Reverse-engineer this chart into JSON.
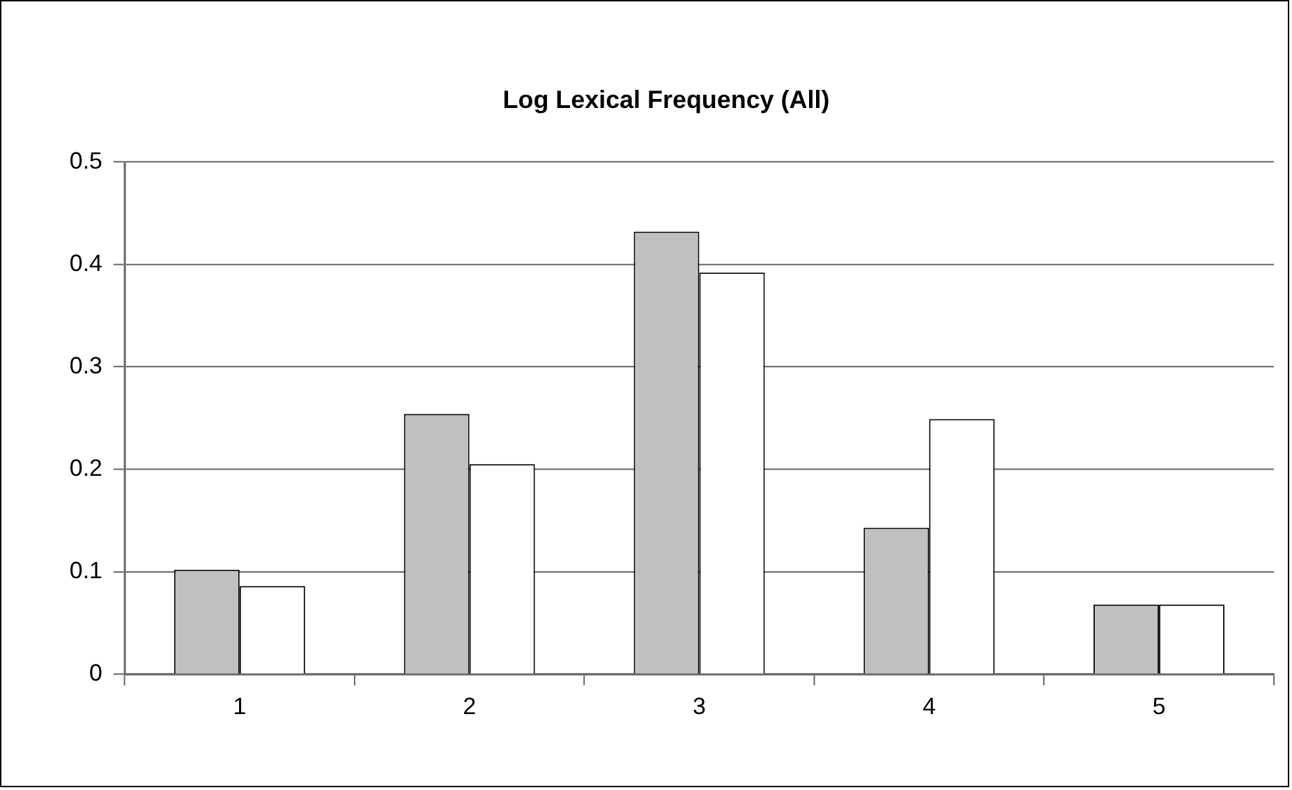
{
  "chart_data": {
    "type": "bar",
    "title": "Log Lexical Frequency (All)",
    "categories": [
      "1",
      "2",
      "3",
      "4",
      "5"
    ],
    "series": [
      {
        "color": "#c0c0c0",
        "values": [
          0.102,
          0.254,
          0.432,
          0.143,
          0.068
        ]
      },
      {
        "color": "#ffffff",
        "values": [
          0.086,
          0.205,
          0.392,
          0.249,
          0.068
        ]
      }
    ],
    "ylim": [
      0,
      0.5
    ],
    "yticks": [
      0,
      0.1,
      0.2,
      0.3,
      0.4,
      0.5
    ],
    "grid": "y",
    "legend": false
  }
}
